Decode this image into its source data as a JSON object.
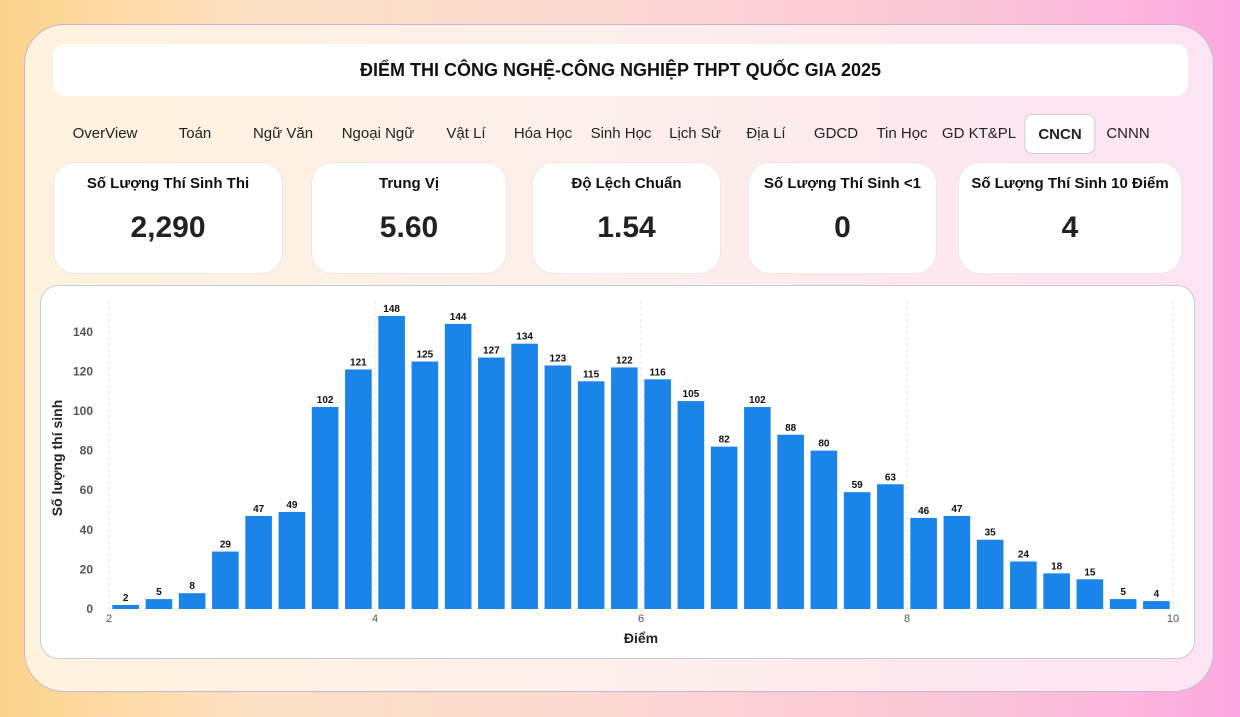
{
  "title": "ĐIỂM THI CÔNG NGHỆ-CÔNG NGHIỆP THPT QUỐC GIA 2025",
  "tabs": [
    {
      "label": "OverView",
      "active": false
    },
    {
      "label": "Toán",
      "active": false
    },
    {
      "label": "Ngữ Văn",
      "active": false
    },
    {
      "label": "Ngoại Ngữ",
      "active": false
    },
    {
      "label": "Vật Lí",
      "active": false
    },
    {
      "label": "Hóa Học",
      "active": false
    },
    {
      "label": "Sinh Học",
      "active": false
    },
    {
      "label": "Lịch Sử",
      "active": false
    },
    {
      "label": "Địa Lí",
      "active": false
    },
    {
      "label": "GDCD",
      "active": false
    },
    {
      "label": "Tin Học",
      "active": false
    },
    {
      "label": "GD KT&PL",
      "active": false
    },
    {
      "label": "CNCN",
      "active": true
    },
    {
      "label": "CNNN",
      "active": false
    }
  ],
  "cards": [
    {
      "label": "Số Lượng Thí Sinh Thi",
      "value": "2,290"
    },
    {
      "label": "Trung Vị",
      "value": "5.60"
    },
    {
      "label": "Độ Lệch Chuẩn",
      "value": "1.54"
    },
    {
      "label": "Số Lượng Thí Sinh <1",
      "value": "0"
    },
    {
      "label": "Số Lượng Thí Sinh 10 Điểm",
      "value": "4"
    }
  ],
  "chart_data": {
    "type": "bar",
    "x": [
      2.25,
      2.5,
      2.75,
      3,
      3.25,
      3.5,
      3.75,
      4,
      4.25,
      4.5,
      4.75,
      5,
      5.25,
      5.5,
      5.75,
      6,
      6.25,
      6.5,
      6.75,
      7,
      7.25,
      7.5,
      7.75,
      8,
      8.25,
      8.5,
      8.75,
      9,
      9.25,
      9.5,
      9.75,
      10
    ],
    "values": [
      2,
      5,
      8,
      29,
      47,
      49,
      102,
      121,
      148,
      125,
      144,
      127,
      134,
      123,
      115,
      122,
      116,
      105,
      82,
      102,
      88,
      80,
      59,
      63,
      46,
      47,
      35,
      24,
      18,
      15,
      5,
      4
    ],
    "xlabel": "Điểm",
    "ylabel": "Số lượng thí sinh",
    "xlim": [
      2,
      10
    ],
    "ylim": [
      0,
      150
    ],
    "xticks": [
      2,
      4,
      6,
      8,
      10
    ],
    "yticks": [
      0,
      20,
      40,
      60,
      80,
      100,
      120,
      140
    ],
    "bar_color": "#1a84e8",
    "grid": "vertical dashed"
  }
}
